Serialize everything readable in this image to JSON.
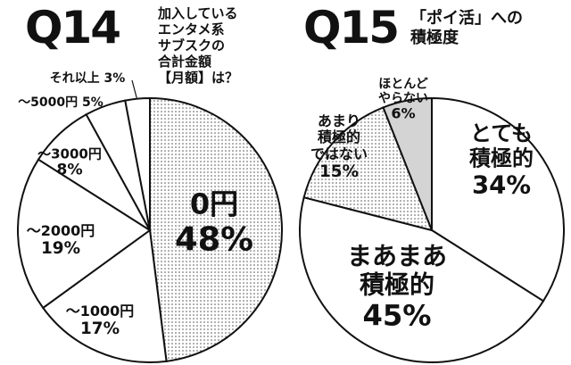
{
  "chart_data": [
    {
      "type": "pie",
      "question": "Q14",
      "title": "加入している\nエンタメ系\nサブスクの\n合計金額\n【月額】は？",
      "categories": [
        "0円",
        "〜1000円",
        "〜2000円",
        "〜3000円",
        "〜5000円",
        "それ以上"
      ],
      "values": [
        48,
        17,
        19,
        8,
        5,
        3
      ],
      "value_labels": [
        "48%",
        "17%",
        "19%",
        "8%",
        "5%",
        "3%"
      ],
      "colors": [
        "dotted",
        "#ffffff",
        "#ffffff",
        "#ffffff",
        "#ffffff",
        "#ffffff"
      ]
    },
    {
      "type": "pie",
      "question": "Q15",
      "title": "「ポイ活」への\n積極度",
      "categories": [
        "とても\n積極的",
        "まあまあ\n積極的",
        "あまり\n積極的\nではない",
        "ほとんど\nやらない"
      ],
      "values": [
        34,
        45,
        15,
        6
      ],
      "value_labels": [
        "34%",
        "45%",
        "15%",
        "6%"
      ],
      "colors": [
        "#ffffff",
        "#ffffff",
        "dotted",
        "#d4d4d4"
      ]
    }
  ]
}
